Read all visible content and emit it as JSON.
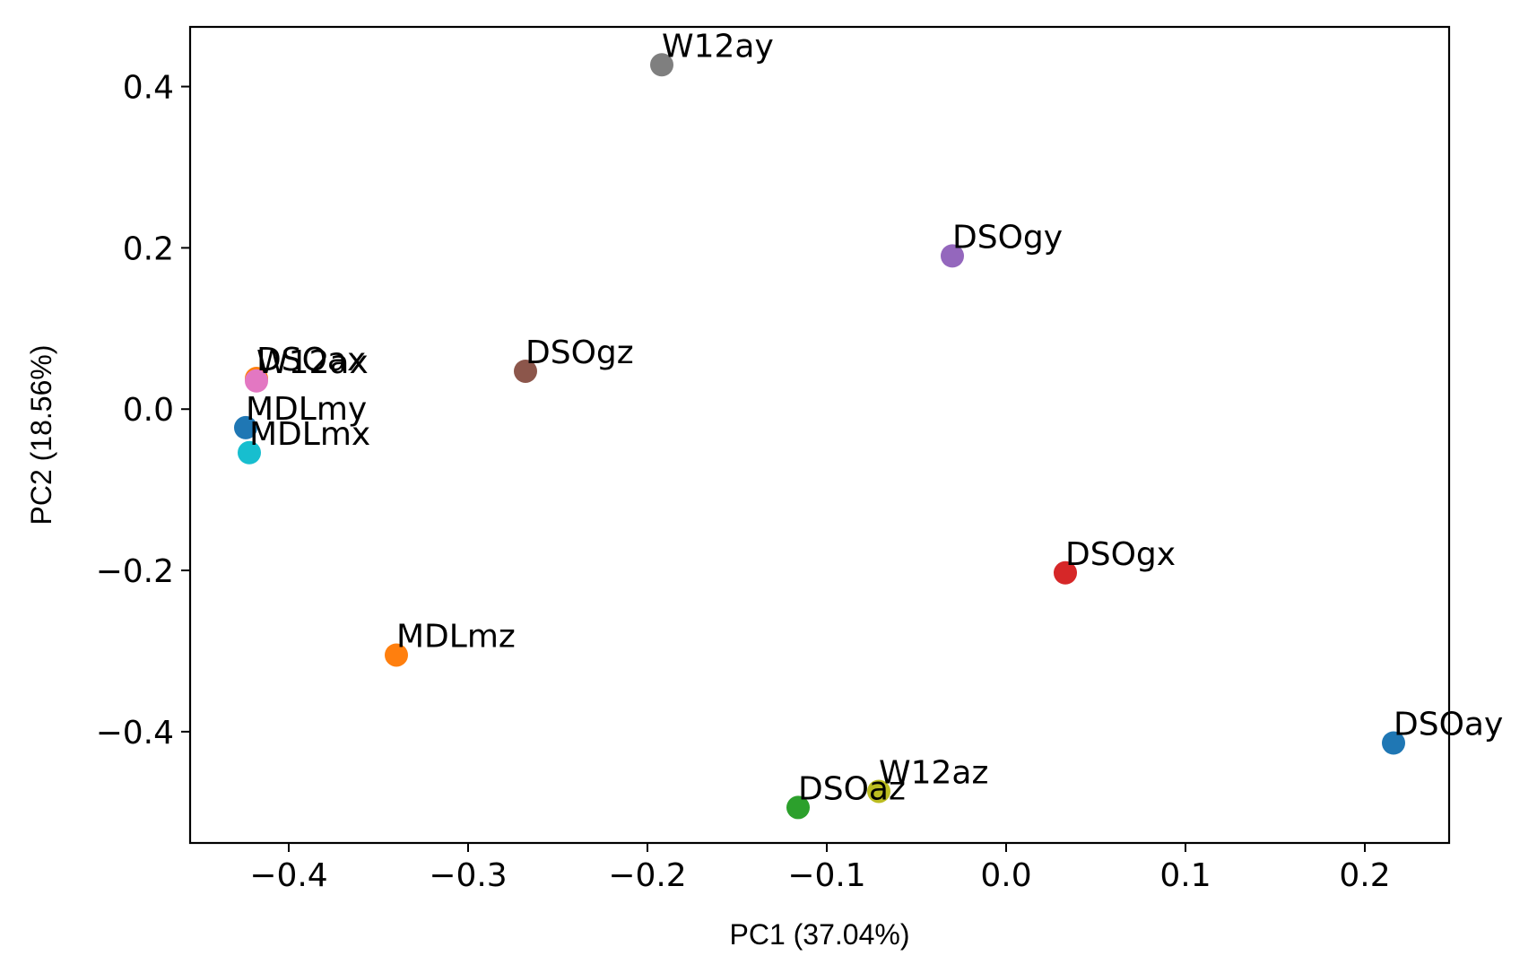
{
  "chart_data": {
    "type": "scatter",
    "title": "",
    "xlabel": "PC1 (37.04%)",
    "ylabel": "PC2 (18.56%)",
    "xlim": [
      -0.455,
      0.247
    ],
    "ylim": [
      -0.538,
      0.474
    ],
    "xticks": [
      -0.4,
      -0.3,
      -0.2,
      -0.1,
      0.0,
      0.1,
      0.2
    ],
    "xtick_labels": [
      "−0.4",
      "−0.3",
      "−0.2",
      "−0.1",
      "0.0",
      "0.1",
      "0.2"
    ],
    "yticks": [
      -0.4,
      -0.2,
      0.0,
      0.2,
      0.4
    ],
    "ytick_labels": [
      "−0.4",
      "−0.2",
      "0.0",
      "0.2",
      "0.4"
    ],
    "grid": false,
    "legend": "none",
    "points": [
      {
        "label": "DSOax",
        "x": -0.418,
        "y": 0.038,
        "color": "#ff7f0e"
      },
      {
        "label": "DSOay",
        "x": 0.216,
        "y": -0.414,
        "color": "#1f77b4"
      },
      {
        "label": "DSOaz",
        "x": -0.116,
        "y": -0.494,
        "color": "#2ca02c"
      },
      {
        "label": "DSOgx",
        "x": 0.033,
        "y": -0.203,
        "color": "#d62728"
      },
      {
        "label": "DSOgy",
        "x": -0.03,
        "y": 0.19,
        "color": "#9467bd"
      },
      {
        "label": "DSOgz",
        "x": -0.268,
        "y": 0.047,
        "color": "#8c564b"
      },
      {
        "label": "W12ax",
        "x": -0.418,
        "y": 0.035,
        "color": "#e377c2"
      },
      {
        "label": "W12ay",
        "x": -0.192,
        "y": 0.427,
        "color": "#7f7f7f"
      },
      {
        "label": "W12az",
        "x": -0.071,
        "y": -0.474,
        "color": "#bcbd22"
      },
      {
        "label": "MDLmx",
        "x": -0.422,
        "y": -0.054,
        "color": "#17becf"
      },
      {
        "label": "MDLmy",
        "x": -0.424,
        "y": -0.023,
        "color": "#1f77b4"
      },
      {
        "label": "MDLmz",
        "x": -0.34,
        "y": -0.305,
        "color": "#ff7f0e"
      }
    ]
  }
}
